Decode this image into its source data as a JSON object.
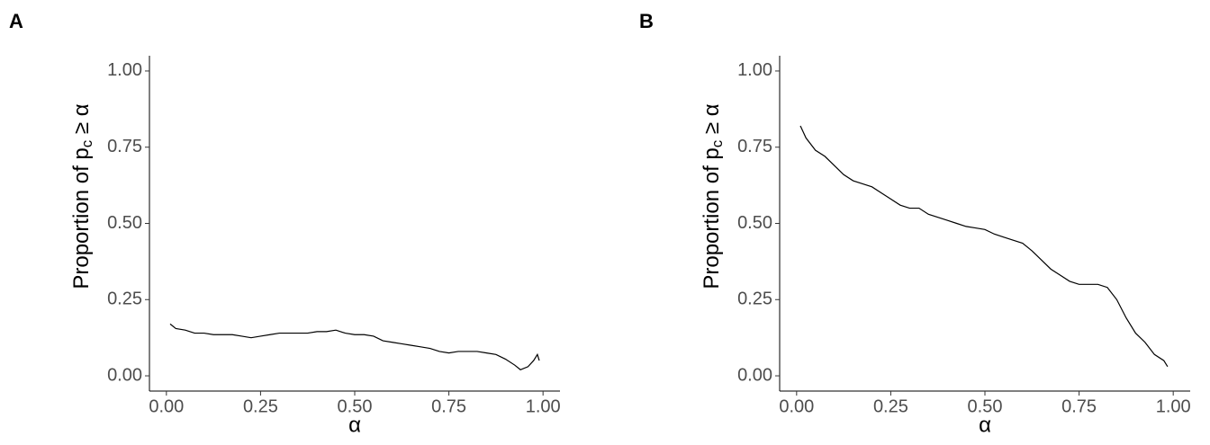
{
  "chart_data": [
    {
      "type": "line",
      "panel_label": "A",
      "x_label": "α",
      "y_label": [
        "Proportion of p",
        "c",
        " ≥ α"
      ],
      "xlim": [
        -0.045,
        1.045
      ],
      "ylim": [
        -0.05,
        1.05
      ],
      "xticks": [
        {
          "value": 0,
          "label": "0.00"
        },
        {
          "value": 0.25,
          "label": "0.25"
        },
        {
          "value": 0.5,
          "label": "0.50"
        },
        {
          "value": 0.75,
          "label": "0.75"
        },
        {
          "value": 1,
          "label": "1.00"
        }
      ],
      "yticks": [
        {
          "value": 0,
          "label": "0.00"
        },
        {
          "value": 0.25,
          "label": "0.25"
        },
        {
          "value": 0.5,
          "label": "0.50"
        },
        {
          "value": 0.75,
          "label": "0.75"
        },
        {
          "value": 1,
          "label": "1.00"
        }
      ],
      "color": "#000000",
      "x": [
        0.01,
        0.025,
        0.05,
        0.075,
        0.1,
        0.125,
        0.15,
        0.175,
        0.2,
        0.225,
        0.25,
        0.275,
        0.3,
        0.325,
        0.35,
        0.375,
        0.4,
        0.425,
        0.45,
        0.475,
        0.5,
        0.525,
        0.55,
        0.575,
        0.6,
        0.625,
        0.65,
        0.675,
        0.7,
        0.725,
        0.75,
        0.775,
        0.8,
        0.825,
        0.85,
        0.875,
        0.9,
        0.925,
        0.94,
        0.96,
        0.975,
        0.985,
        0.99
      ],
      "values": [
        0.17,
        0.155,
        0.15,
        0.14,
        0.14,
        0.135,
        0.135,
        0.135,
        0.13,
        0.125,
        0.13,
        0.135,
        0.14,
        0.14,
        0.14,
        0.14,
        0.145,
        0.145,
        0.15,
        0.14,
        0.135,
        0.135,
        0.13,
        0.115,
        0.11,
        0.105,
        0.1,
        0.095,
        0.09,
        0.08,
        0.075,
        0.08,
        0.08,
        0.08,
        0.075,
        0.07,
        0.055,
        0.035,
        0.02,
        0.03,
        0.05,
        0.07,
        0.05
      ]
    },
    {
      "type": "line",
      "panel_label": "B",
      "x_label": "α",
      "y_label": [
        "Proportion of p",
        "c",
        " ≥ α"
      ],
      "xlim": [
        -0.045,
        1.045
      ],
      "ylim": [
        -0.05,
        1.05
      ],
      "xticks": [
        {
          "value": 0,
          "label": "0.00"
        },
        {
          "value": 0.25,
          "label": "0.25"
        },
        {
          "value": 0.5,
          "label": "0.50"
        },
        {
          "value": 0.75,
          "label": "0.75"
        },
        {
          "value": 1,
          "label": "1.00"
        }
      ],
      "yticks": [
        {
          "value": 0,
          "label": "0.00"
        },
        {
          "value": 0.25,
          "label": "0.25"
        },
        {
          "value": 0.5,
          "label": "0.50"
        },
        {
          "value": 0.75,
          "label": "0.75"
        },
        {
          "value": 1,
          "label": "1.00"
        }
      ],
      "color": "#000000",
      "x": [
        0.01,
        0.025,
        0.05,
        0.075,
        0.1,
        0.125,
        0.15,
        0.175,
        0.2,
        0.225,
        0.25,
        0.275,
        0.3,
        0.325,
        0.35,
        0.375,
        0.4,
        0.425,
        0.45,
        0.475,
        0.5,
        0.525,
        0.55,
        0.575,
        0.6,
        0.625,
        0.65,
        0.675,
        0.7,
        0.725,
        0.75,
        0.775,
        0.8,
        0.825,
        0.85,
        0.875,
        0.9,
        0.925,
        0.95,
        0.975,
        0.985
      ],
      "values": [
        0.82,
        0.78,
        0.74,
        0.72,
        0.69,
        0.66,
        0.64,
        0.63,
        0.62,
        0.6,
        0.58,
        0.56,
        0.55,
        0.55,
        0.53,
        0.52,
        0.51,
        0.5,
        0.49,
        0.485,
        0.48,
        0.465,
        0.455,
        0.445,
        0.435,
        0.41,
        0.38,
        0.35,
        0.33,
        0.31,
        0.3,
        0.3,
        0.3,
        0.29,
        0.25,
        0.19,
        0.14,
        0.11,
        0.07,
        0.05,
        0.03
      ]
    }
  ]
}
